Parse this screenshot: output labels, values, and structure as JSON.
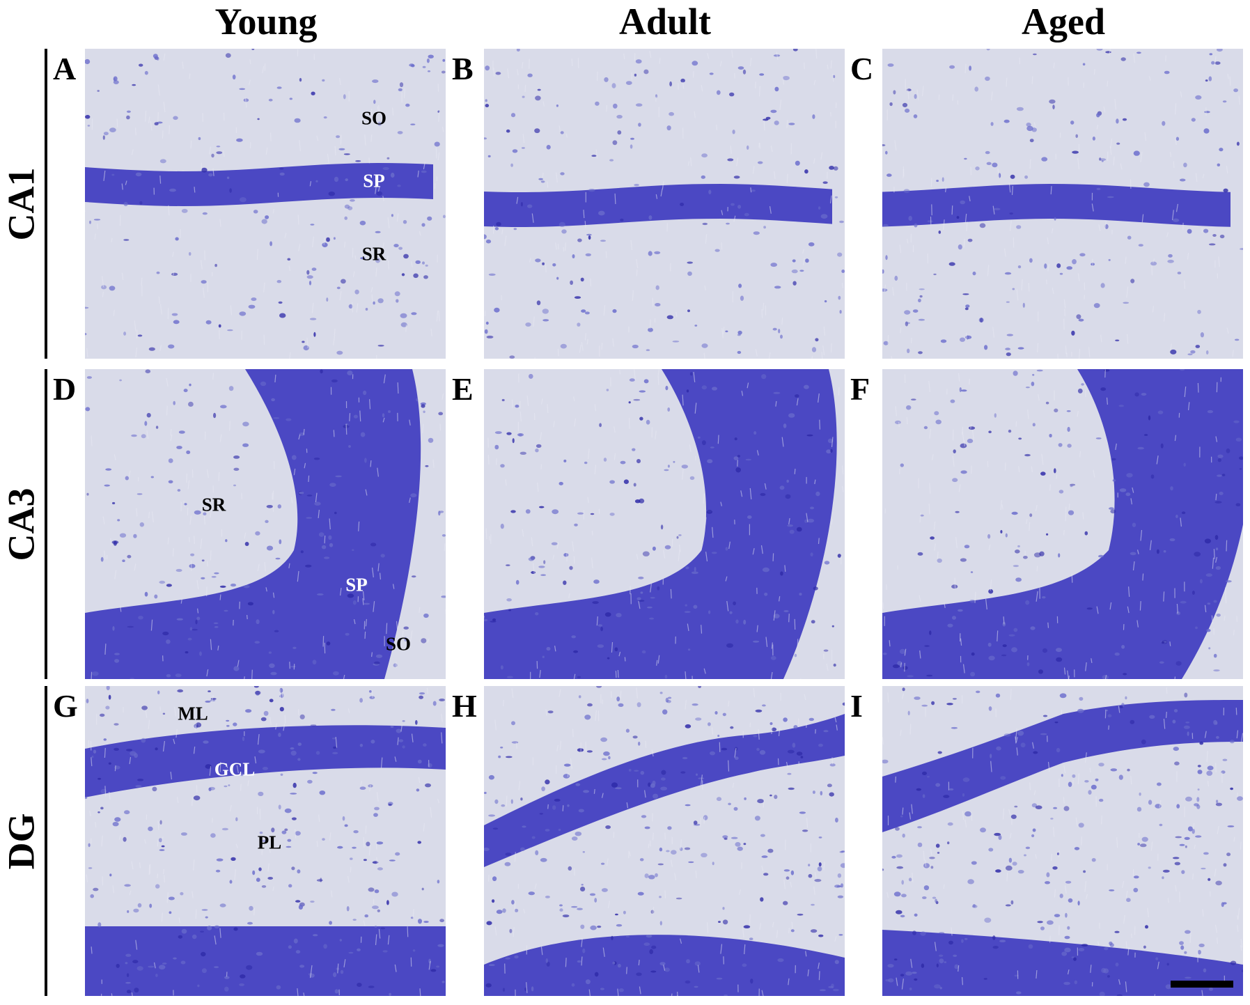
{
  "columns": [
    "Young",
    "Adult",
    "Aged"
  ],
  "rows": [
    "CA1",
    "CA3",
    "DG"
  ],
  "panels": [
    {
      "letter": "A",
      "row": 0,
      "col": 0,
      "labels": [
        {
          "text": "SO",
          "color": "#000000"
        },
        {
          "text": "SP",
          "color": "#ffffff"
        },
        {
          "text": "SR",
          "color": "#000000"
        }
      ]
    },
    {
      "letter": "B",
      "row": 0,
      "col": 1,
      "labels": []
    },
    {
      "letter": "C",
      "row": 0,
      "col": 2,
      "labels": []
    },
    {
      "letter": "D",
      "row": 1,
      "col": 0,
      "labels": [
        {
          "text": "SR",
          "color": "#000000"
        },
        {
          "text": "SP",
          "color": "#ffffff"
        },
        {
          "text": "SO",
          "color": "#000000"
        }
      ]
    },
    {
      "letter": "E",
      "row": 1,
      "col": 1,
      "labels": []
    },
    {
      "letter": "F",
      "row": 1,
      "col": 2,
      "labels": []
    },
    {
      "letter": "G",
      "row": 2,
      "col": 0,
      "labels": [
        {
          "text": "ML",
          "color": "#000000"
        },
        {
          "text": "GCL",
          "color": "#ffffff"
        },
        {
          "text": "PL",
          "color": "#000000"
        }
      ]
    },
    {
      "letter": "H",
      "row": 2,
      "col": 1,
      "labels": []
    },
    {
      "letter": "I",
      "row": 2,
      "col": 2,
      "labels": []
    }
  ],
  "colors": {
    "background_tissue": "#d9dbe9",
    "cell_layer": "#3f3cbf",
    "cell_layer_dark": "#2e2aa8",
    "scattered_cells": "#6a6ccc"
  },
  "scale_bar": {
    "panel": "I",
    "color": "#000000"
  }
}
